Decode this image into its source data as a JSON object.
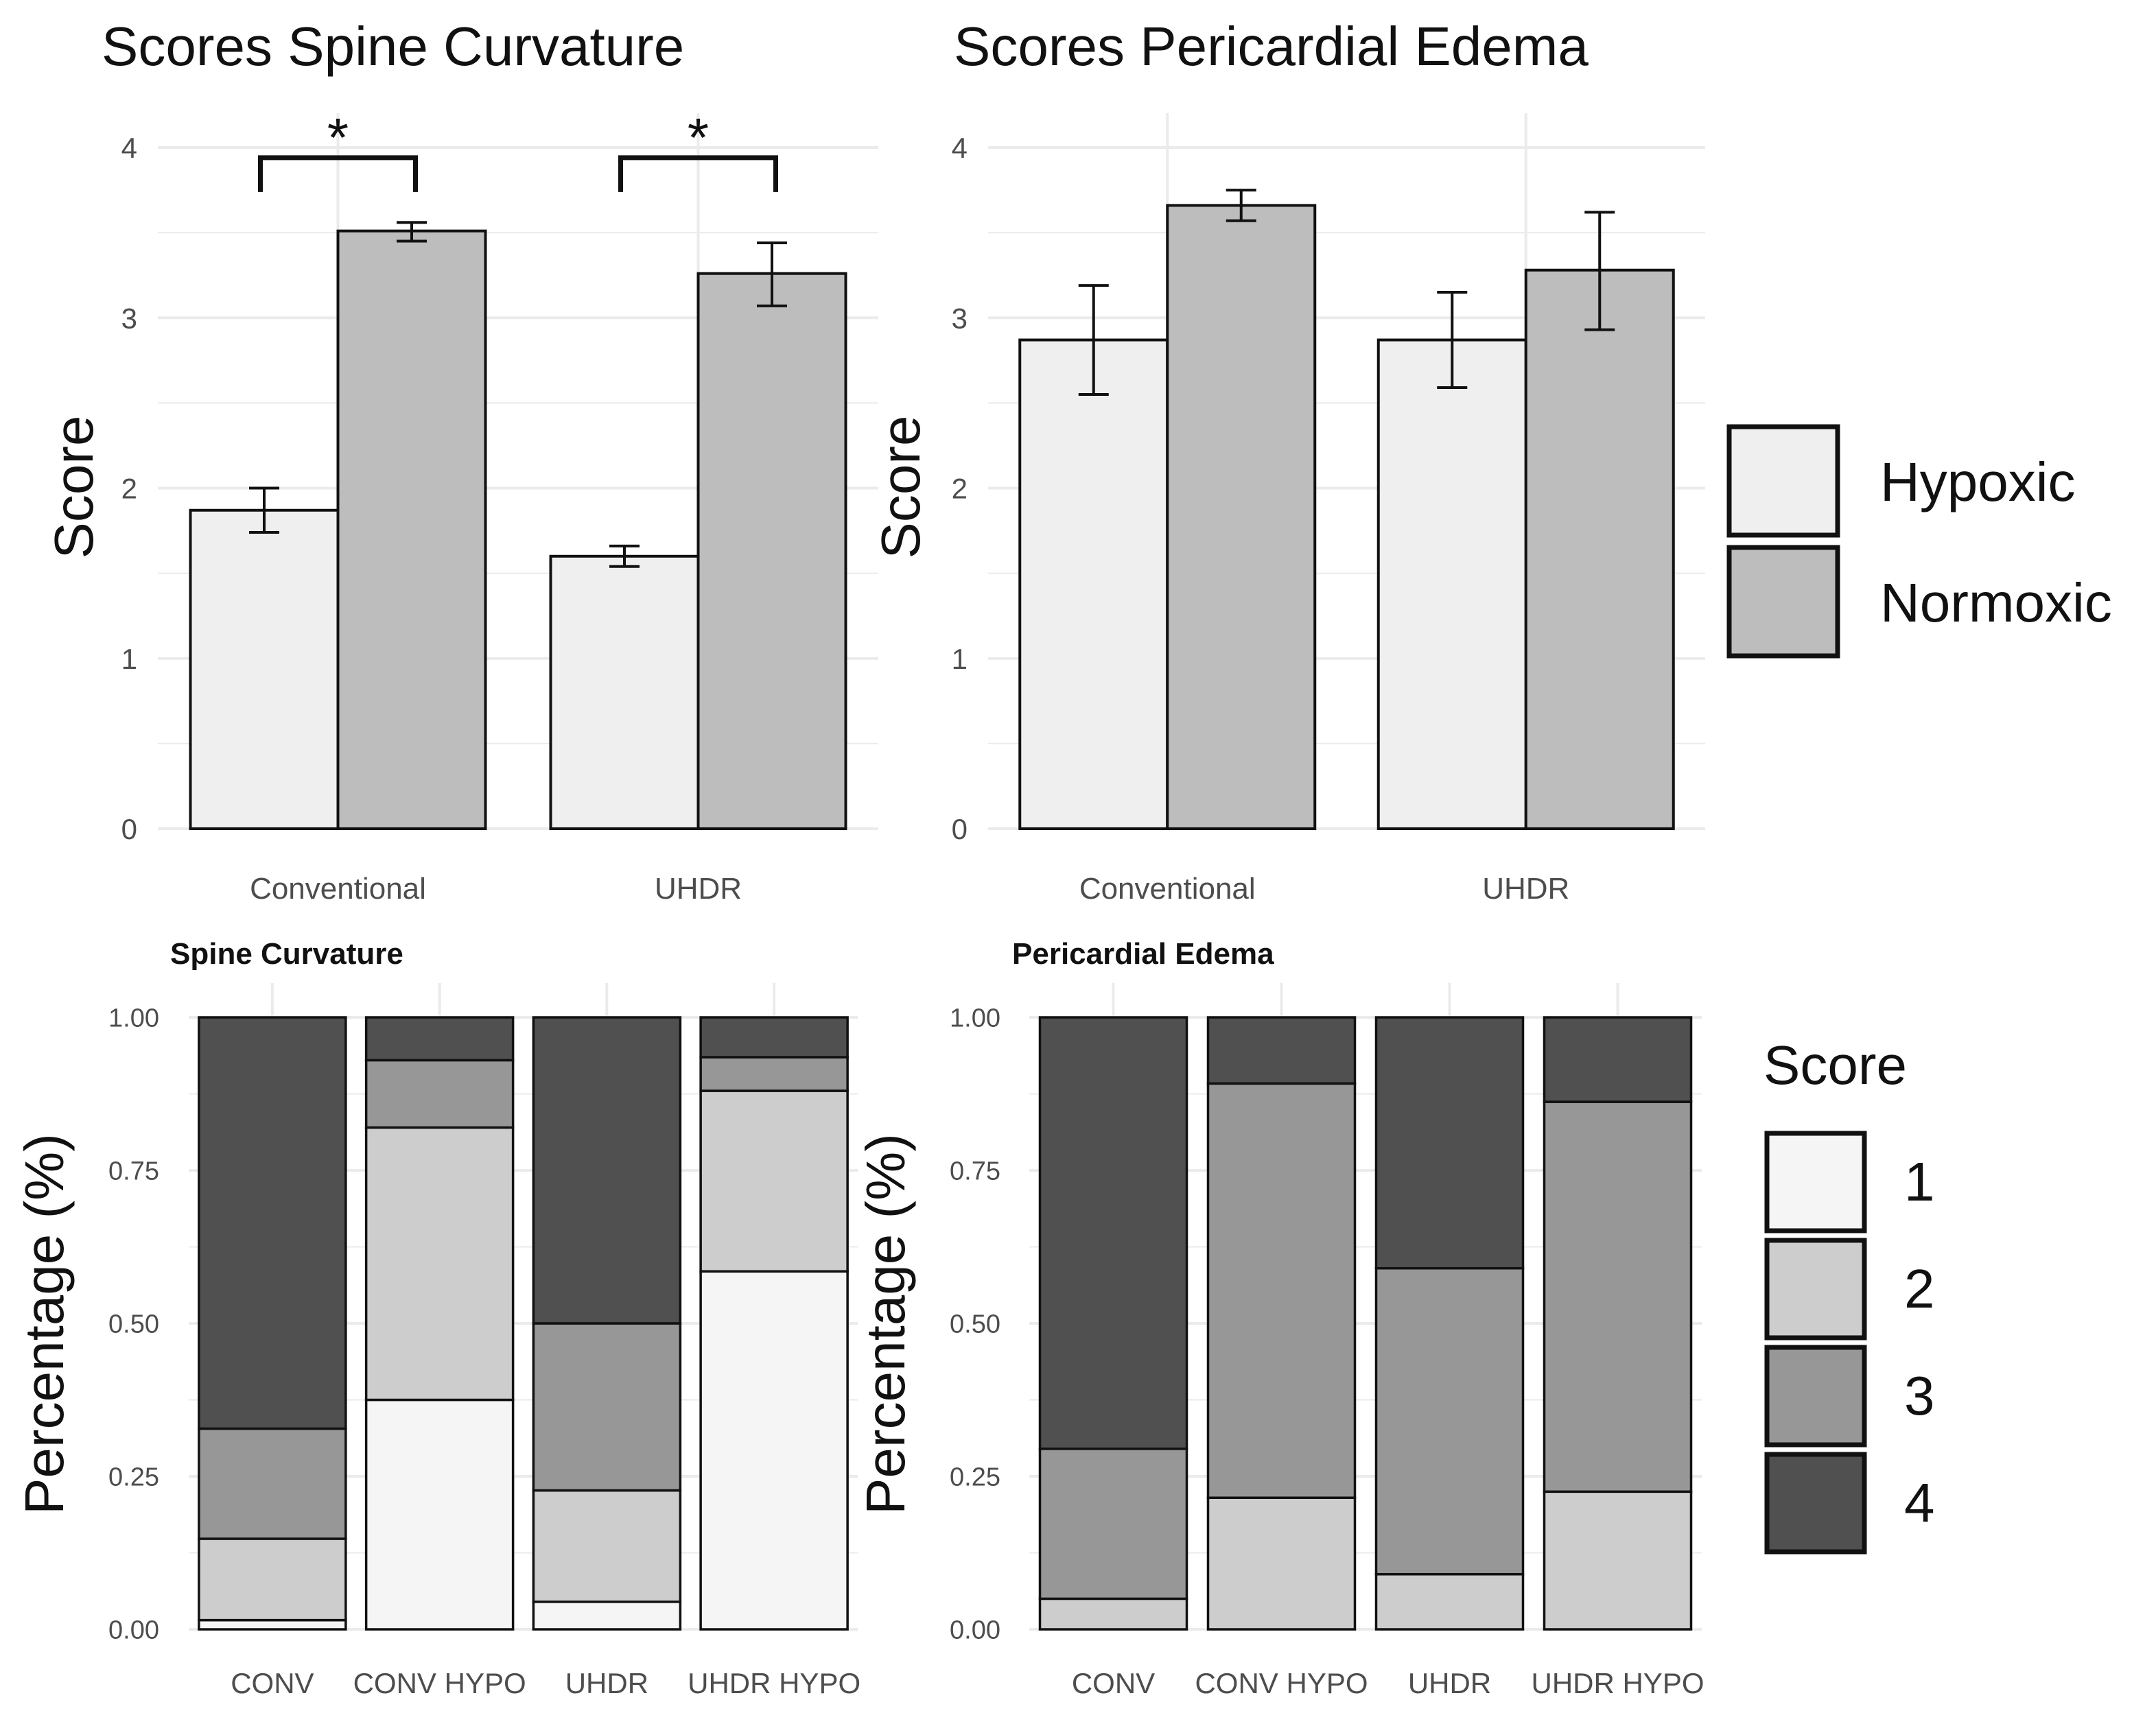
{
  "colors": {
    "hypoxic": "#efefef",
    "normoxic": "#bdbdbd",
    "score1": "#f5f5f5",
    "score2": "#cdcdcd",
    "score3": "#979797",
    "score4": "#505050",
    "grid": "#ebebeb",
    "bar_outline": "#111111",
    "text_dark": "#111111",
    "tick_text": "#4d4d4d"
  },
  "chart_data": [
    {
      "id": "spine_scores",
      "type": "bar",
      "title": "Scores Spine Curvature",
      "xlabel": "",
      "ylabel": "Score",
      "ylim": [
        0,
        4
      ],
      "yticks": [
        "0",
        "1",
        "2",
        "3",
        "4"
      ],
      "categories": [
        "Conventional",
        "UHDR"
      ],
      "series": [
        {
          "name": "Hypoxic",
          "values": [
            1.87,
            1.6
          ],
          "err_low": [
            1.74,
            1.54
          ],
          "err_high": [
            2.0,
            1.66
          ]
        },
        {
          "name": "Normoxic",
          "values": [
            3.51,
            3.26
          ],
          "err_low": [
            3.45,
            3.07
          ],
          "err_high": [
            3.56,
            3.44
          ]
        }
      ],
      "annotations": [
        {
          "category": "Conventional",
          "text": "*",
          "y": 3.94
        },
        {
          "category": "UHDR",
          "text": "*",
          "y": 3.94
        }
      ]
    },
    {
      "id": "edema_scores",
      "type": "bar",
      "title": "Scores Pericardial Edema",
      "xlabel": "",
      "ylabel": "Score",
      "ylim": [
        0,
        4
      ],
      "yticks": [
        "0",
        "1",
        "2",
        "3",
        "4"
      ],
      "categories": [
        "Conventional",
        "UHDR"
      ],
      "series": [
        {
          "name": "Hypoxic",
          "values": [
            2.87,
            2.87
          ],
          "err_low": [
            2.55,
            2.59
          ],
          "err_high": [
            3.19,
            3.15
          ]
        },
        {
          "name": "Normoxic",
          "values": [
            3.66,
            3.28
          ],
          "err_low": [
            3.57,
            2.93
          ],
          "err_high": [
            3.75,
            3.62
          ]
        }
      ],
      "annotations": []
    },
    {
      "id": "spine_pct",
      "type": "bar",
      "stacked": true,
      "title": "Spine Curvature",
      "xlabel": "",
      "ylabel": "Percentage (%)",
      "ylim": [
        0,
        1
      ],
      "yticks": [
        "0.00",
        "0.25",
        "0.50",
        "0.75",
        "1.00"
      ],
      "categories": [
        "CONV",
        "CONV HYPO",
        "UHDR",
        "UHDR HYPO"
      ],
      "series": [
        {
          "name": "1",
          "values": [
            0.015,
            0.375,
            0.045,
            0.585
          ]
        },
        {
          "name": "2",
          "values": [
            0.133,
            0.445,
            0.182,
            0.295
          ]
        },
        {
          "name": "3",
          "values": [
            0.18,
            0.11,
            0.273,
            0.055
          ]
        },
        {
          "name": "4",
          "values": [
            0.672,
            0.07,
            0.5,
            0.065
          ]
        }
      ]
    },
    {
      "id": "edema_pct",
      "type": "bar",
      "stacked": true,
      "title": "Pericardial Edema",
      "xlabel": "",
      "ylabel": "Percentage (%)",
      "ylim": [
        0,
        1
      ],
      "yticks": [
        "0.00",
        "0.25",
        "0.50",
        "0.75",
        "1.00"
      ],
      "categories": [
        "CONV",
        "CONV HYPO",
        "UHDR",
        "UHDR HYPO"
      ],
      "series": [
        {
          "name": "1",
          "values": [
            0,
            0,
            0,
            0
          ]
        },
        {
          "name": "2",
          "values": [
            0.05,
            0.215,
            0.09,
            0.225
          ]
        },
        {
          "name": "3",
          "values": [
            0.245,
            0.677,
            0.5,
            0.637
          ]
        },
        {
          "name": "4",
          "values": [
            0.705,
            0.108,
            0.41,
            0.138
          ]
        }
      ]
    }
  ],
  "legends": {
    "condition": {
      "title": "",
      "items": [
        "Hypoxic",
        "Normoxic"
      ]
    },
    "score": {
      "title": "Score",
      "items": [
        "1",
        "2",
        "3",
        "4"
      ]
    }
  }
}
